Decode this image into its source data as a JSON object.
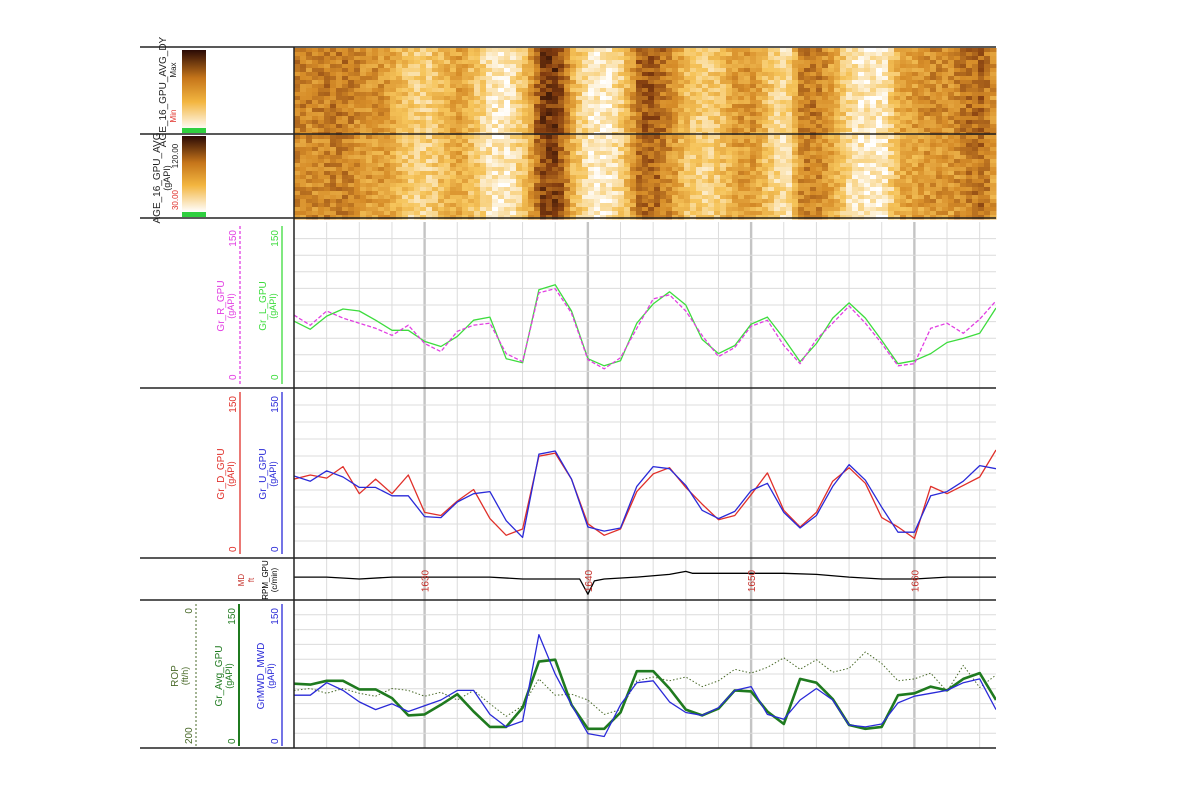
{
  "colors": {
    "green": "#3ddc3d",
    "magenta": "#e23fe2",
    "red": "#e0302a",
    "blue": "#2a2ad8",
    "dark_green": "#1f7a1f",
    "rop": "#4a6a2a",
    "black": "#000000",
    "md": "#c4302a",
    "grid_major": "#c4c4c4",
    "grid_minor": "#dcdcdc"
  },
  "image_tracks": [
    {
      "label": "AGE_16_GPU_AVG_DY",
      "min_label": "Min",
      "max_label": "Max"
    },
    {
      "label": "AGE_16_GPU_AVG",
      "unit": "(gAPI)",
      "min_label": "30.00",
      "max_label": "120.00"
    }
  ],
  "chart_data": [
    {
      "type": "line",
      "track": "gamma-left-right",
      "x_label": "MD (ft)",
      "xlim": [
        1622,
        1665
      ],
      "axes": [
        {
          "name": "Gr_R_GPU",
          "unit": "(gAPI)",
          "min": "0",
          "max": "150",
          "color": "magenta"
        },
        {
          "name": "Gr_L_GPU",
          "unit": "(gAPI)",
          "min": "0",
          "max": "150",
          "color": "green"
        }
      ],
      "series": [
        {
          "name": "Gr_L_GPU",
          "color": "green",
          "dash": false,
          "x": [
            1622,
            1623,
            1624,
            1625,
            1626,
            1627,
            1628,
            1629,
            1630,
            1631,
            1632,
            1633,
            1634,
            1635,
            1636,
            1637,
            1638,
            1639,
            1640,
            1641,
            1642,
            1643,
            1644,
            1645,
            1646,
            1647,
            1648,
            1649,
            1650,
            1651,
            1652,
            1653,
            1654,
            1655,
            1656,
            1657,
            1658,
            1659,
            1660,
            1661,
            1662,
            1663,
            1664,
            1665
          ],
          "y": [
            62,
            54,
            67,
            74,
            72,
            63,
            53,
            53,
            42,
            37,
            47,
            63,
            66,
            25,
            21,
            93,
            98,
            72,
            25,
            18,
            23,
            60,
            79,
            91,
            78,
            44,
            30,
            38,
            59,
            66,
            45,
            22,
            40,
            65,
            80,
            65,
            43,
            20,
            23,
            30,
            41,
            45,
            50,
            75
          ]
        },
        {
          "name": "Gr_R_GPU",
          "color": "magenta",
          "dash": true,
          "x": [
            1622,
            1623,
            1624,
            1625,
            1626,
            1627,
            1628,
            1629,
            1630,
            1631,
            1632,
            1633,
            1634,
            1635,
            1636,
            1637,
            1638,
            1639,
            1640,
            1641,
            1642,
            1643,
            1644,
            1645,
            1646,
            1647,
            1648,
            1649,
            1650,
            1651,
            1652,
            1653,
            1654,
            1655,
            1656,
            1657,
            1658,
            1659,
            1660,
            1661,
            1662,
            1663,
            1664,
            1665
          ],
          "y": [
            68,
            58,
            72,
            65,
            60,
            55,
            48,
            58,
            40,
            32,
            52,
            58,
            60,
            30,
            22,
            90,
            94,
            70,
            24,
            15,
            26,
            55,
            84,
            88,
            72,
            48,
            27,
            36,
            57,
            63,
            38,
            20,
            44,
            60,
            77,
            60,
            40,
            18,
            20,
            55,
            60,
            50,
            64,
            82
          ]
        }
      ]
    },
    {
      "type": "line",
      "track": "gamma-up-down",
      "x_label": "MD (ft)",
      "xlim": [
        1622,
        1665
      ],
      "axes": [
        {
          "name": "Gr_D_GPU",
          "unit": "(gAPI)",
          "min": "0",
          "max": "150",
          "color": "red"
        },
        {
          "name": "Gr_U_GPU",
          "unit": "(gAPI)",
          "min": "0",
          "max": "150",
          "color": "blue"
        }
      ],
      "series": [
        {
          "name": "Gr_D_GPU",
          "color": "red",
          "dash": false,
          "x": [
            1622,
            1623,
            1624,
            1625,
            1626,
            1627,
            1628,
            1629,
            1630,
            1631,
            1632,
            1633,
            1634,
            1635,
            1636,
            1637,
            1638,
            1639,
            1640,
            1641,
            1642,
            1643,
            1644,
            1645,
            1646,
            1647,
            1648,
            1649,
            1650,
            1651,
            1652,
            1653,
            1654,
            1655,
            1656,
            1657,
            1658,
            1659,
            1660,
            1661,
            1662,
            1663,
            1664,
            1665
          ],
          "y": [
            72,
            76,
            73,
            84,
            58,
            72,
            58,
            76,
            40,
            37,
            51,
            62,
            34,
            18,
            24,
            94,
            97,
            72,
            29,
            18,
            24,
            60,
            77,
            83,
            64,
            48,
            33,
            37,
            57,
            78,
            42,
            26,
            40,
            70,
            83,
            68,
            35,
            26,
            15,
            65,
            58,
            66,
            74,
            100
          ]
        },
        {
          "name": "Gr_U_GPU",
          "color": "blue",
          "dash": false,
          "x": [
            1622,
            1623,
            1624,
            1625,
            1626,
            1627,
            1628,
            1629,
            1630,
            1631,
            1632,
            1633,
            1634,
            1635,
            1636,
            1637,
            1638,
            1639,
            1640,
            1641,
            1642,
            1643,
            1644,
            1645,
            1646,
            1647,
            1648,
            1649,
            1650,
            1651,
            1652,
            1653,
            1654,
            1655,
            1656,
            1657,
            1658,
            1659,
            1660,
            1661,
            1662,
            1663,
            1664,
            1665
          ],
          "y": [
            75,
            70,
            80,
            74,
            64,
            64,
            56,
            56,
            36,
            35,
            50,
            58,
            60,
            32,
            16,
            96,
            99,
            72,
            26,
            22,
            25,
            65,
            84,
            82,
            66,
            42,
            34,
            41,
            61,
            68,
            40,
            25,
            37,
            65,
            86,
            71,
            45,
            21,
            21,
            56,
            60,
            70,
            85,
            82
          ]
        }
      ]
    },
    {
      "type": "line",
      "track": "rpm",
      "x_label": "MD (ft)",
      "xlim": [
        1622,
        1665
      ],
      "axes": [
        {
          "name": "RPM_GPU",
          "unit": "(c/min)",
          "color": "black"
        }
      ],
      "series": [
        {
          "name": "RPM_GPU",
          "color": "black",
          "dash": false,
          "x": [
            1622,
            1624,
            1626,
            1628,
            1630,
            1632,
            1634,
            1636,
            1638,
            1639.5,
            1640,
            1640.4,
            1641,
            1643,
            1645,
            1646,
            1646.4,
            1648,
            1650,
            1652,
            1654,
            1656,
            1658,
            1660,
            1662,
            1665
          ],
          "y": [
            0.55,
            0.55,
            0.5,
            0.55,
            0.55,
            0.55,
            0.55,
            0.5,
            0.5,
            0.5,
            0.1,
            0.45,
            0.5,
            0.55,
            0.62,
            0.7,
            0.65,
            0.65,
            0.65,
            0.65,
            0.62,
            0.55,
            0.5,
            0.5,
            0.55,
            0.55
          ]
        }
      ],
      "md_ticks": [
        "1630",
        "1640",
        "1650",
        "1660"
      ],
      "md_label": "MD",
      "md_unit": "ft"
    },
    {
      "type": "line",
      "track": "mwd",
      "x_label": "MD (ft)",
      "xlim": [
        1622,
        1665
      ],
      "axes": [
        {
          "name": "ROP",
          "unit": "(ft/h)",
          "min": "200",
          "max": "0",
          "color": "rop"
        },
        {
          "name": "Gr_Avg_GPU",
          "unit": "(gAPI)",
          "min": "0",
          "max": "150",
          "color": "dark_green"
        },
        {
          "name": "GrMWD_MWD",
          "unit": "(gAPI)",
          "min": "0",
          "max": "150",
          "color": "blue"
        }
      ],
      "series": [
        {
          "name": "ROP",
          "color": "rop",
          "dash": true,
          "x": [
            1622,
            1623,
            1624,
            1625,
            1626,
            1627,
            1628,
            1629,
            1630,
            1631,
            1632,
            1633,
            1634,
            1635,
            1636,
            1637,
            1638,
            1639,
            1640,
            1641,
            1642,
            1643,
            1644,
            1645,
            1646,
            1647,
            1648,
            1649,
            1650,
            1651,
            1652,
            1653,
            1654,
            1655,
            1656,
            1657,
            1658,
            1659,
            1660,
            1661,
            1662,
            1663,
            1664,
            1665
          ],
          "y": [
            60,
            62,
            57,
            62,
            57,
            54,
            62,
            60,
            54,
            58,
            50,
            60,
            46,
            33,
            44,
            72,
            55,
            56,
            50,
            35,
            40,
            70,
            74,
            70,
            74,
            64,
            70,
            82,
            78,
            84,
            94,
            82,
            92,
            79,
            83,
            100,
            88,
            70,
            72,
            78,
            59,
            86,
            63,
            76
          ]
        },
        {
          "name": "Gr_Avg_GPU",
          "color": "dark_green",
          "dash": false,
          "x": [
            1622,
            1623,
            1624,
            1625,
            1626,
            1627,
            1628,
            1629,
            1630,
            1631,
            1632,
            1633,
            1634,
            1635,
            1636,
            1637,
            1638,
            1639,
            1640,
            1641,
            1642,
            1643,
            1644,
            1645,
            1646,
            1647,
            1648,
            1649,
            1650,
            1651,
            1652,
            1653,
            1654,
            1655,
            1656,
            1657,
            1658,
            1659,
            1660,
            1661,
            1662,
            1663,
            1664,
            1665
          ],
          "y": [
            67,
            66,
            70,
            70,
            61,
            61,
            52,
            34,
            35,
            45,
            56,
            38,
            22,
            22,
            42,
            90,
            92,
            45,
            20,
            20,
            37,
            80,
            80,
            62,
            40,
            34,
            41,
            60,
            59,
            38,
            25,
            72,
            68,
            51,
            24,
            20,
            22,
            55,
            57,
            64,
            60,
            72,
            78,
            50
          ]
        },
        {
          "name": "GrMWD_MWD",
          "color": "blue",
          "dash": false,
          "x": [
            1622,
            1623,
            1624,
            1625,
            1626,
            1627,
            1628,
            1629,
            1630,
            1631,
            1632,
            1633,
            1634,
            1635,
            1636,
            1637,
            1638,
            1639,
            1640,
            1641,
            1642,
            1643,
            1644,
            1645,
            1646,
            1647,
            1648,
            1649,
            1650,
            1651,
            1652,
            1653,
            1654,
            1655,
            1656,
            1657,
            1658,
            1659,
            1660,
            1661,
            1662,
            1663,
            1664,
            1665
          ],
          "y": [
            55,
            55,
            68,
            60,
            48,
            40,
            46,
            38,
            44,
            50,
            60,
            60,
            35,
            22,
            28,
            118,
            77,
            45,
            15,
            12,
            45,
            68,
            70,
            48,
            37,
            34,
            42,
            60,
            64,
            35,
            30,
            50,
            62,
            50,
            24,
            22,
            25,
            47,
            54,
            57,
            60,
            68,
            72,
            40
          ]
        }
      ]
    }
  ]
}
